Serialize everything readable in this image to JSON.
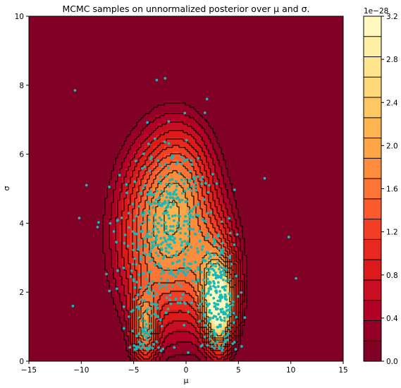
{
  "chart_data": {
    "type": "contour+scatter",
    "title": "MCMC samples on unnormalized posterior over μ and σ.",
    "xlabel": "μ",
    "ylabel": "σ",
    "xlim": [
      -15,
      15
    ],
    "ylim": [
      0,
      10
    ],
    "xticks": [
      -15,
      -10,
      -5,
      0,
      5,
      10,
      15
    ],
    "yticks": [
      0,
      2,
      4,
      6,
      8,
      10
    ],
    "grid": false,
    "colorbar": {
      "offset_label": "1e−28",
      "ticks": [
        0.0,
        0.4,
        0.8,
        1.2,
        1.6,
        2.0,
        2.4,
        2.8,
        3.2
      ],
      "levels": 16,
      "colors": [
        "#800026",
        "#960026",
        "#b20026",
        "#c80e23",
        "#dc1a1c",
        "#e8271f",
        "#f23e25",
        "#fc5a2d",
        "#fd7434",
        "#fd8c3c",
        "#fea346",
        "#feb54f",
        "#fec763",
        "#fed97a",
        "#ffe48e",
        "#ffefa5",
        "#fff9c0"
      ]
    },
    "posterior_modes": [
      {
        "mu": -4.0,
        "sigma": 1.0
      },
      {
        "mu": 3.1,
        "sigma": 1.6
      }
    ],
    "scatter": {
      "color": "#17b8b8",
      "n_points": 720,
      "notable_points": [
        {
          "mu": -10.6,
          "sigma": 7.85
        },
        {
          "mu": -2.8,
          "sigma": 8.15
        },
        {
          "mu": -2.0,
          "sigma": 8.2
        },
        {
          "mu": -10.2,
          "sigma": 4.15
        },
        {
          "mu": -10.8,
          "sigma": 1.6
        },
        {
          "mu": 9.8,
          "sigma": 3.6
        },
        {
          "mu": 10.5,
          "sigma": 2.4
        },
        {
          "mu": 7.5,
          "sigma": 5.3
        },
        {
          "mu": 2.0,
          "sigma": 7.6
        },
        {
          "mu": 1.8,
          "sigma": 7.2
        },
        {
          "mu": 0.2,
          "sigma": 0.25
        }
      ]
    }
  }
}
